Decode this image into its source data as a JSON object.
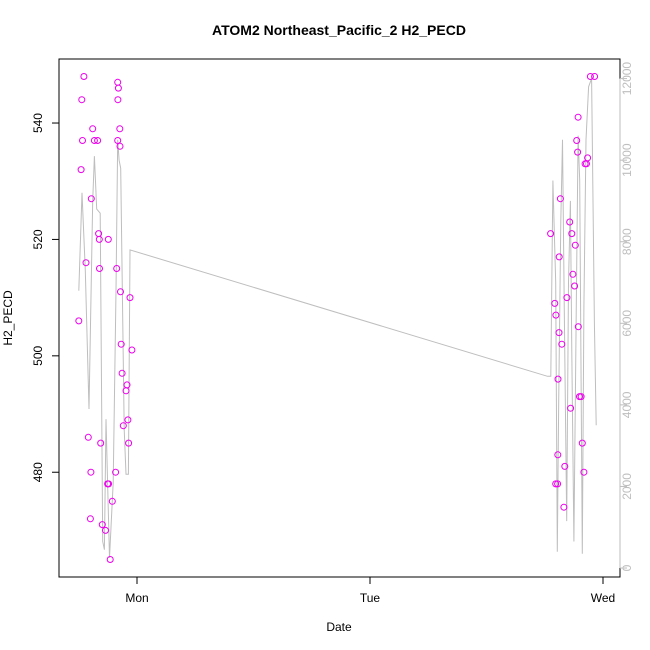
{
  "chart_data": {
    "type": "scatter",
    "title": "ATOM2 Northeast_Pacific_2 H2_PECD",
    "xlabel": "Date",
    "ylabel": "H2_PECD",
    "x_ticks": [
      "Mon",
      "Tue",
      "Wed"
    ],
    "y_ticks": [
      "480",
      "500",
      "520",
      "540"
    ],
    "y2_ticks": [
      "0",
      "2000",
      "4000",
      "6000",
      "8000",
      "10000",
      "12000"
    ],
    "y_lim": [
      462,
      551
    ],
    "y2_lim": [
      -220,
      12480
    ],
    "grid": false,
    "colors": {
      "points": "#ee00ee",
      "line": "#bebebe",
      "right_axis": "#bebebe"
    },
    "series": [
      {
        "kind": "points",
        "axis": "left",
        "x": [
          -0.25,
          -0.24,
          -0.237,
          -0.234,
          -0.228,
          -0.219,
          -0.209,
          -0.2,
          -0.198,
          -0.196,
          -0.19,
          -0.183,
          -0.169,
          -0.165,
          -0.162,
          -0.161,
          -0.156,
          -0.149,
          -0.135,
          -0.126,
          -0.123,
          -0.122,
          -0.115,
          -0.106,
          -0.092,
          -0.087,
          -0.083,
          -0.083,
          -0.082,
          -0.08,
          -0.074,
          -0.073,
          -0.071,
          -0.068,
          -0.064,
          -0.059,
          -0.047,
          -0.043,
          -0.039,
          -0.036,
          -0.03,
          -0.022,
          1.775,
          1.793,
          1.797,
          1.798,
          1.805,
          1.806,
          1.807,
          1.811,
          1.812,
          1.817,
          1.823,
          1.832,
          1.836,
          1.845,
          1.857,
          1.861,
          1.866,
          1.871,
          1.878,
          1.881,
          1.887,
          1.891,
          1.893,
          1.894,
          1.899,
          1.906,
          1.911,
          1.918,
          1.923,
          1.929,
          1.934,
          1.946,
          1.964
        ],
        "y": [
          506,
          532,
          544,
          537,
          548,
          516,
          486,
          472,
          480,
          527,
          539,
          537,
          537,
          521,
          520,
          515,
          485,
          471,
          470,
          478,
          520,
          478,
          465,
          475,
          480,
          515,
          537,
          547,
          544,
          546,
          539,
          536,
          511,
          502,
          497,
          488,
          494,
          495,
          489,
          485,
          510,
          501,
          521,
          509,
          478,
          507,
          478,
          483,
          496,
          504,
          517,
          527,
          502,
          474,
          481,
          510,
          523,
          491,
          521,
          514,
          512,
          519,
          537,
          535,
          541,
          505,
          493,
          493,
          485,
          480,
          533,
          533,
          534,
          548,
          548
        ],
        "note_y_right": false
      },
      {
        "kind": "line",
        "axis": "right",
        "x": [
          -0.25,
          -0.236,
          -0.222,
          -0.206,
          -0.19,
          -0.183,
          -0.173,
          -0.158,
          -0.147,
          -0.14,
          -0.133,
          -0.125,
          -0.118,
          -0.112,
          -0.102,
          -0.09,
          -0.083,
          -0.077,
          -0.07,
          -0.055,
          -0.047,
          -0.037,
          -0.03,
          1.762,
          1.776,
          1.785,
          1.797,
          1.804,
          1.81,
          1.819,
          1.826,
          1.834,
          1.844,
          1.852,
          1.86,
          1.866,
          1.875,
          1.886,
          1.893,
          1.9,
          1.911,
          1.918,
          1.927,
          1.938,
          1.951,
          1.963,
          1.971
        ],
        "y": [
          6800,
          9200,
          7300,
          3900,
          9000,
          10100,
          8800,
          8700,
          650,
          450,
          3650,
          1800,
          250,
          950,
          2100,
          6800,
          10500,
          10000,
          9800,
          3400,
          2300,
          2300,
          7800,
          4700,
          4700,
          9500,
          7000,
          400,
          4100,
          8500,
          10500,
          6300,
          1150,
          7000,
          9000,
          5300,
          650,
          6700,
          10600,
          9500,
          350,
          6400,
          10500,
          11800,
          12000,
          6000,
          3500
        ]
      }
    ]
  }
}
